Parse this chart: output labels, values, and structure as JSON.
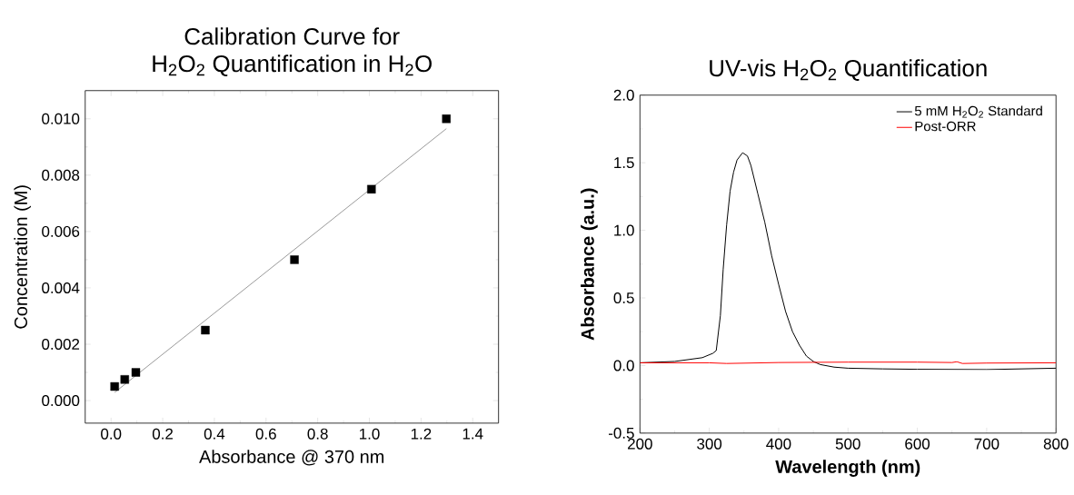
{
  "chart_data": [
    {
      "type": "scatter",
      "title": "Calibration Curve for",
      "subtitle": "H$_{2}$O$_{2}$ Quantification in H$_{2}$O",
      "xlabel": "Absorbance @ 370 nm",
      "ylabel": "Concentration (M)",
      "xlim": [
        -0.1,
        1.5
      ],
      "ylim": [
        -0.0008,
        0.011
      ],
      "xticks": [
        {
          "value": 0,
          "label": "0.0"
        },
        {
          "value": 0.2,
          "label": "0.2"
        },
        {
          "value": 0.4,
          "label": "0.4"
        },
        {
          "value": 0.6,
          "label": "0.6"
        },
        {
          "value": 0.8,
          "label": "0.8"
        },
        {
          "value": 1.0,
          "label": "1.0"
        },
        {
          "value": 1.2,
          "label": "1.2"
        },
        {
          "value": 1.4,
          "label": "1.4"
        }
      ],
      "yticks": [
        {
          "value": 0,
          "label": "0.000"
        },
        {
          "value": 0.002,
          "label": "0.002"
        },
        {
          "value": 0.004,
          "label": "0.004"
        },
        {
          "value": 0.006,
          "label": "0.006"
        },
        {
          "value": 0.008,
          "label": "0.008"
        },
        {
          "value": 0.01,
          "label": "0.010"
        }
      ],
      "series": [
        {
          "type": "scatter",
          "color": "#000000",
          "marker": "square",
          "x": [
            0.014,
            0.053,
            0.096,
            0.365,
            0.71,
            1.008,
            1.298
          ],
          "values": [
            0.0005,
            0.00075,
            0.001,
            0.0025,
            0.005,
            0.0075,
            0.01
          ]
        },
        {
          "type": "line",
          "color": "#555555",
          "marker": "none",
          "x": [
            0.014,
            1.298
          ],
          "values": [
            0.00029,
            0.00965
          ]
        }
      ]
    },
    {
      "type": "line",
      "title": "UV-vis H$_{2}$O$_{2}$ Quantification",
      "xlabel": "Wavelength (nm)",
      "ylabel": "Absorbance (a.u.)",
      "xlim": [
        200,
        800
      ],
      "ylim": [
        -0.5,
        2.0
      ],
      "xticks": [
        200,
        300,
        400,
        500,
        600,
        700,
        800
      ],
      "yticks": [
        {
          "value": -0.5,
          "label": "-0.5"
        },
        {
          "value": 0,
          "label": "0.0"
        },
        {
          "value": 0.5,
          "label": "0.5"
        },
        {
          "value": 1.0,
          "label": "1.0"
        },
        {
          "value": 1.5,
          "label": "1.5"
        },
        {
          "value": 2.0,
          "label": "2.0"
        }
      ],
      "legend": "top right",
      "marker": "none",
      "series": [
        {
          "name": "5 mM H$_{2}$O$_{2}$ Standard",
          "color": "#000000",
          "x": [
            200,
            250,
            290,
            305,
            310,
            316,
            320,
            325,
            330,
            335,
            340,
            348,
            355,
            360,
            370,
            380,
            390,
            400,
            410,
            420,
            430,
            440,
            450,
            460,
            480,
            500,
            550,
            600,
            700,
            800
          ],
          "values": [
            0.02,
            0.03,
            0.058,
            0.09,
            0.11,
            0.37,
            0.71,
            1.04,
            1.29,
            1.43,
            1.52,
            1.574,
            1.55,
            1.48,
            1.27,
            1.06,
            0.81,
            0.6,
            0.4,
            0.25,
            0.15,
            0.07,
            0.03,
            0.007,
            -0.012,
            -0.02,
            -0.025,
            -0.028,
            -0.03,
            -0.02
          ]
        },
        {
          "name": "Post-ORR",
          "color": "#ff0000",
          "x": [
            200,
            250,
            300,
            325,
            400,
            500,
            600,
            650,
            657,
            665,
            700,
            800
          ],
          "values": [
            0.02,
            0.02,
            0.02,
            0.015,
            0.022,
            0.025,
            0.025,
            0.022,
            0.028,
            0.015,
            0.018,
            0.02
          ]
        }
      ]
    }
  ]
}
